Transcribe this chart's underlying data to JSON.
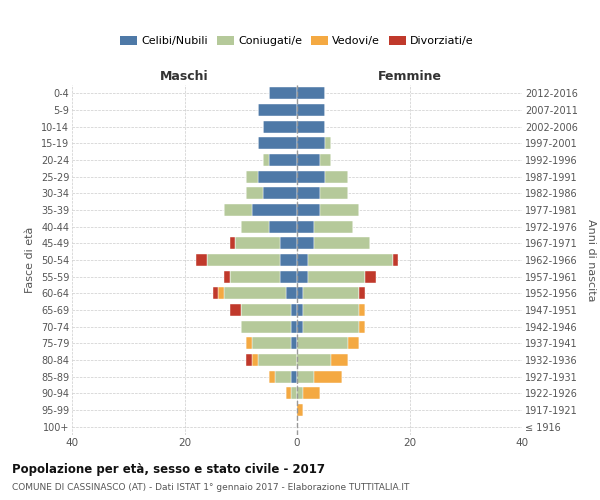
{
  "age_groups": [
    "100+",
    "95-99",
    "90-94",
    "85-89",
    "80-84",
    "75-79",
    "70-74",
    "65-69",
    "60-64",
    "55-59",
    "50-54",
    "45-49",
    "40-44",
    "35-39",
    "30-34",
    "25-29",
    "20-24",
    "15-19",
    "10-14",
    "5-9",
    "0-4"
  ],
  "birth_years": [
    "≤ 1916",
    "1917-1921",
    "1922-1926",
    "1927-1931",
    "1932-1936",
    "1937-1941",
    "1942-1946",
    "1947-1951",
    "1952-1956",
    "1957-1961",
    "1962-1966",
    "1967-1971",
    "1972-1976",
    "1977-1981",
    "1982-1986",
    "1987-1991",
    "1992-1996",
    "1997-2001",
    "2002-2006",
    "2007-2011",
    "2012-2016"
  ],
  "male": {
    "celibi": [
      0,
      0,
      0,
      1,
      0,
      1,
      1,
      1,
      2,
      3,
      3,
      3,
      5,
      8,
      6,
      7,
      5,
      7,
      6,
      7,
      5
    ],
    "coniugati": [
      0,
      0,
      1,
      3,
      7,
      7,
      9,
      9,
      11,
      9,
      13,
      8,
      5,
      5,
      3,
      2,
      1,
      0,
      0,
      0,
      0
    ],
    "vedovi": [
      0,
      0,
      1,
      1,
      1,
      1,
      0,
      0,
      1,
      0,
      0,
      0,
      0,
      0,
      0,
      0,
      0,
      0,
      0,
      0,
      0
    ],
    "divorziati": [
      0,
      0,
      0,
      0,
      1,
      0,
      0,
      2,
      1,
      1,
      2,
      1,
      0,
      0,
      0,
      0,
      0,
      0,
      0,
      0,
      0
    ]
  },
  "female": {
    "nubili": [
      0,
      0,
      0,
      0,
      0,
      0,
      1,
      1,
      1,
      2,
      2,
      3,
      3,
      4,
      4,
      5,
      4,
      5,
      5,
      5,
      5
    ],
    "coniugate": [
      0,
      0,
      1,
      3,
      6,
      9,
      10,
      10,
      10,
      10,
      15,
      10,
      7,
      7,
      5,
      4,
      2,
      1,
      0,
      0,
      0
    ],
    "vedove": [
      0,
      1,
      3,
      5,
      3,
      2,
      1,
      1,
      0,
      0,
      0,
      0,
      0,
      0,
      0,
      0,
      0,
      0,
      0,
      0,
      0
    ],
    "divorziate": [
      0,
      0,
      0,
      0,
      0,
      0,
      0,
      0,
      1,
      2,
      1,
      0,
      0,
      0,
      0,
      0,
      0,
      0,
      0,
      0,
      0
    ]
  },
  "color_celibi": "#4e79a7",
  "color_coniugati": "#b5c99a",
  "color_vedovi": "#f4a942",
  "color_divorziati": "#c0392b",
  "xlim": 40,
  "title": "Popolazione per età, sesso e stato civile - 2017",
  "subtitle": "COMUNE DI CASSINASCO (AT) - Dati ISTAT 1° gennaio 2017 - Elaborazione TUTTITALIA.IT",
  "ylabel": "Fasce di età",
  "ylabel_right": "Anni di nascita",
  "label_maschi": "Maschi",
  "label_femmine": "Femmine",
  "legend_celibi": "Celibi/Nubili",
  "legend_coniugati": "Coniugati/e",
  "legend_vedovi": "Vedovi/e",
  "legend_divorziati": "Divorziati/e"
}
